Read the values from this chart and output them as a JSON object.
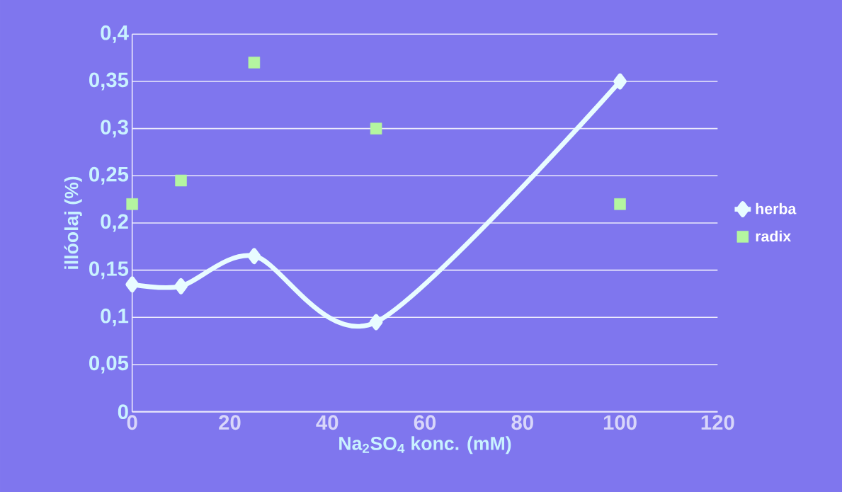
{
  "chart_data": {
    "type": "line",
    "xlabel": "**Na$_{2}$SO$_{4}$ konc. (mM)**",
    "ylabel": "**illóolaj (%)**",
    "xlim": [
      0,
      120
    ],
    "xticks": [
      0,
      20,
      40,
      60,
      80,
      100,
      120
    ],
    "ylim": [
      0,
      0.4
    ],
    "yticks": [
      0,
      {
        "value": 0.05,
        "label": "0,05"
      },
      {
        "value": 0.1,
        "label": "0,1"
      },
      {
        "value": 0.15,
        "label": "0,15"
      },
      {
        "value": 0.2,
        "label": "0,2"
      },
      {
        "value": 0.25,
        "label": "0,25"
      },
      {
        "value": 0.3,
        "label": "0,3"
      },
      {
        "value": 0.35,
        "label": "0,35"
      },
      {
        "value": 0.4,
        "label": "0,4"
      }
    ],
    "x": [
      0,
      10,
      25,
      50,
      100
    ],
    "series": [
      {
        "name": "herba",
        "marker": "diamond",
        "color": "#e8fcff",
        "values": [
          0.135,
          0.133,
          0.165,
          0.095,
          0.35
        ]
      },
      {
        "name": "radix",
        "type": "scatter",
        "marker": "square",
        "color": "#b4f5a0",
        "values": [
          0.22,
          0.245,
          0.37,
          0.3,
          0.22
        ]
      }
    ],
    "grid": "y",
    "legend": "right"
  }
}
